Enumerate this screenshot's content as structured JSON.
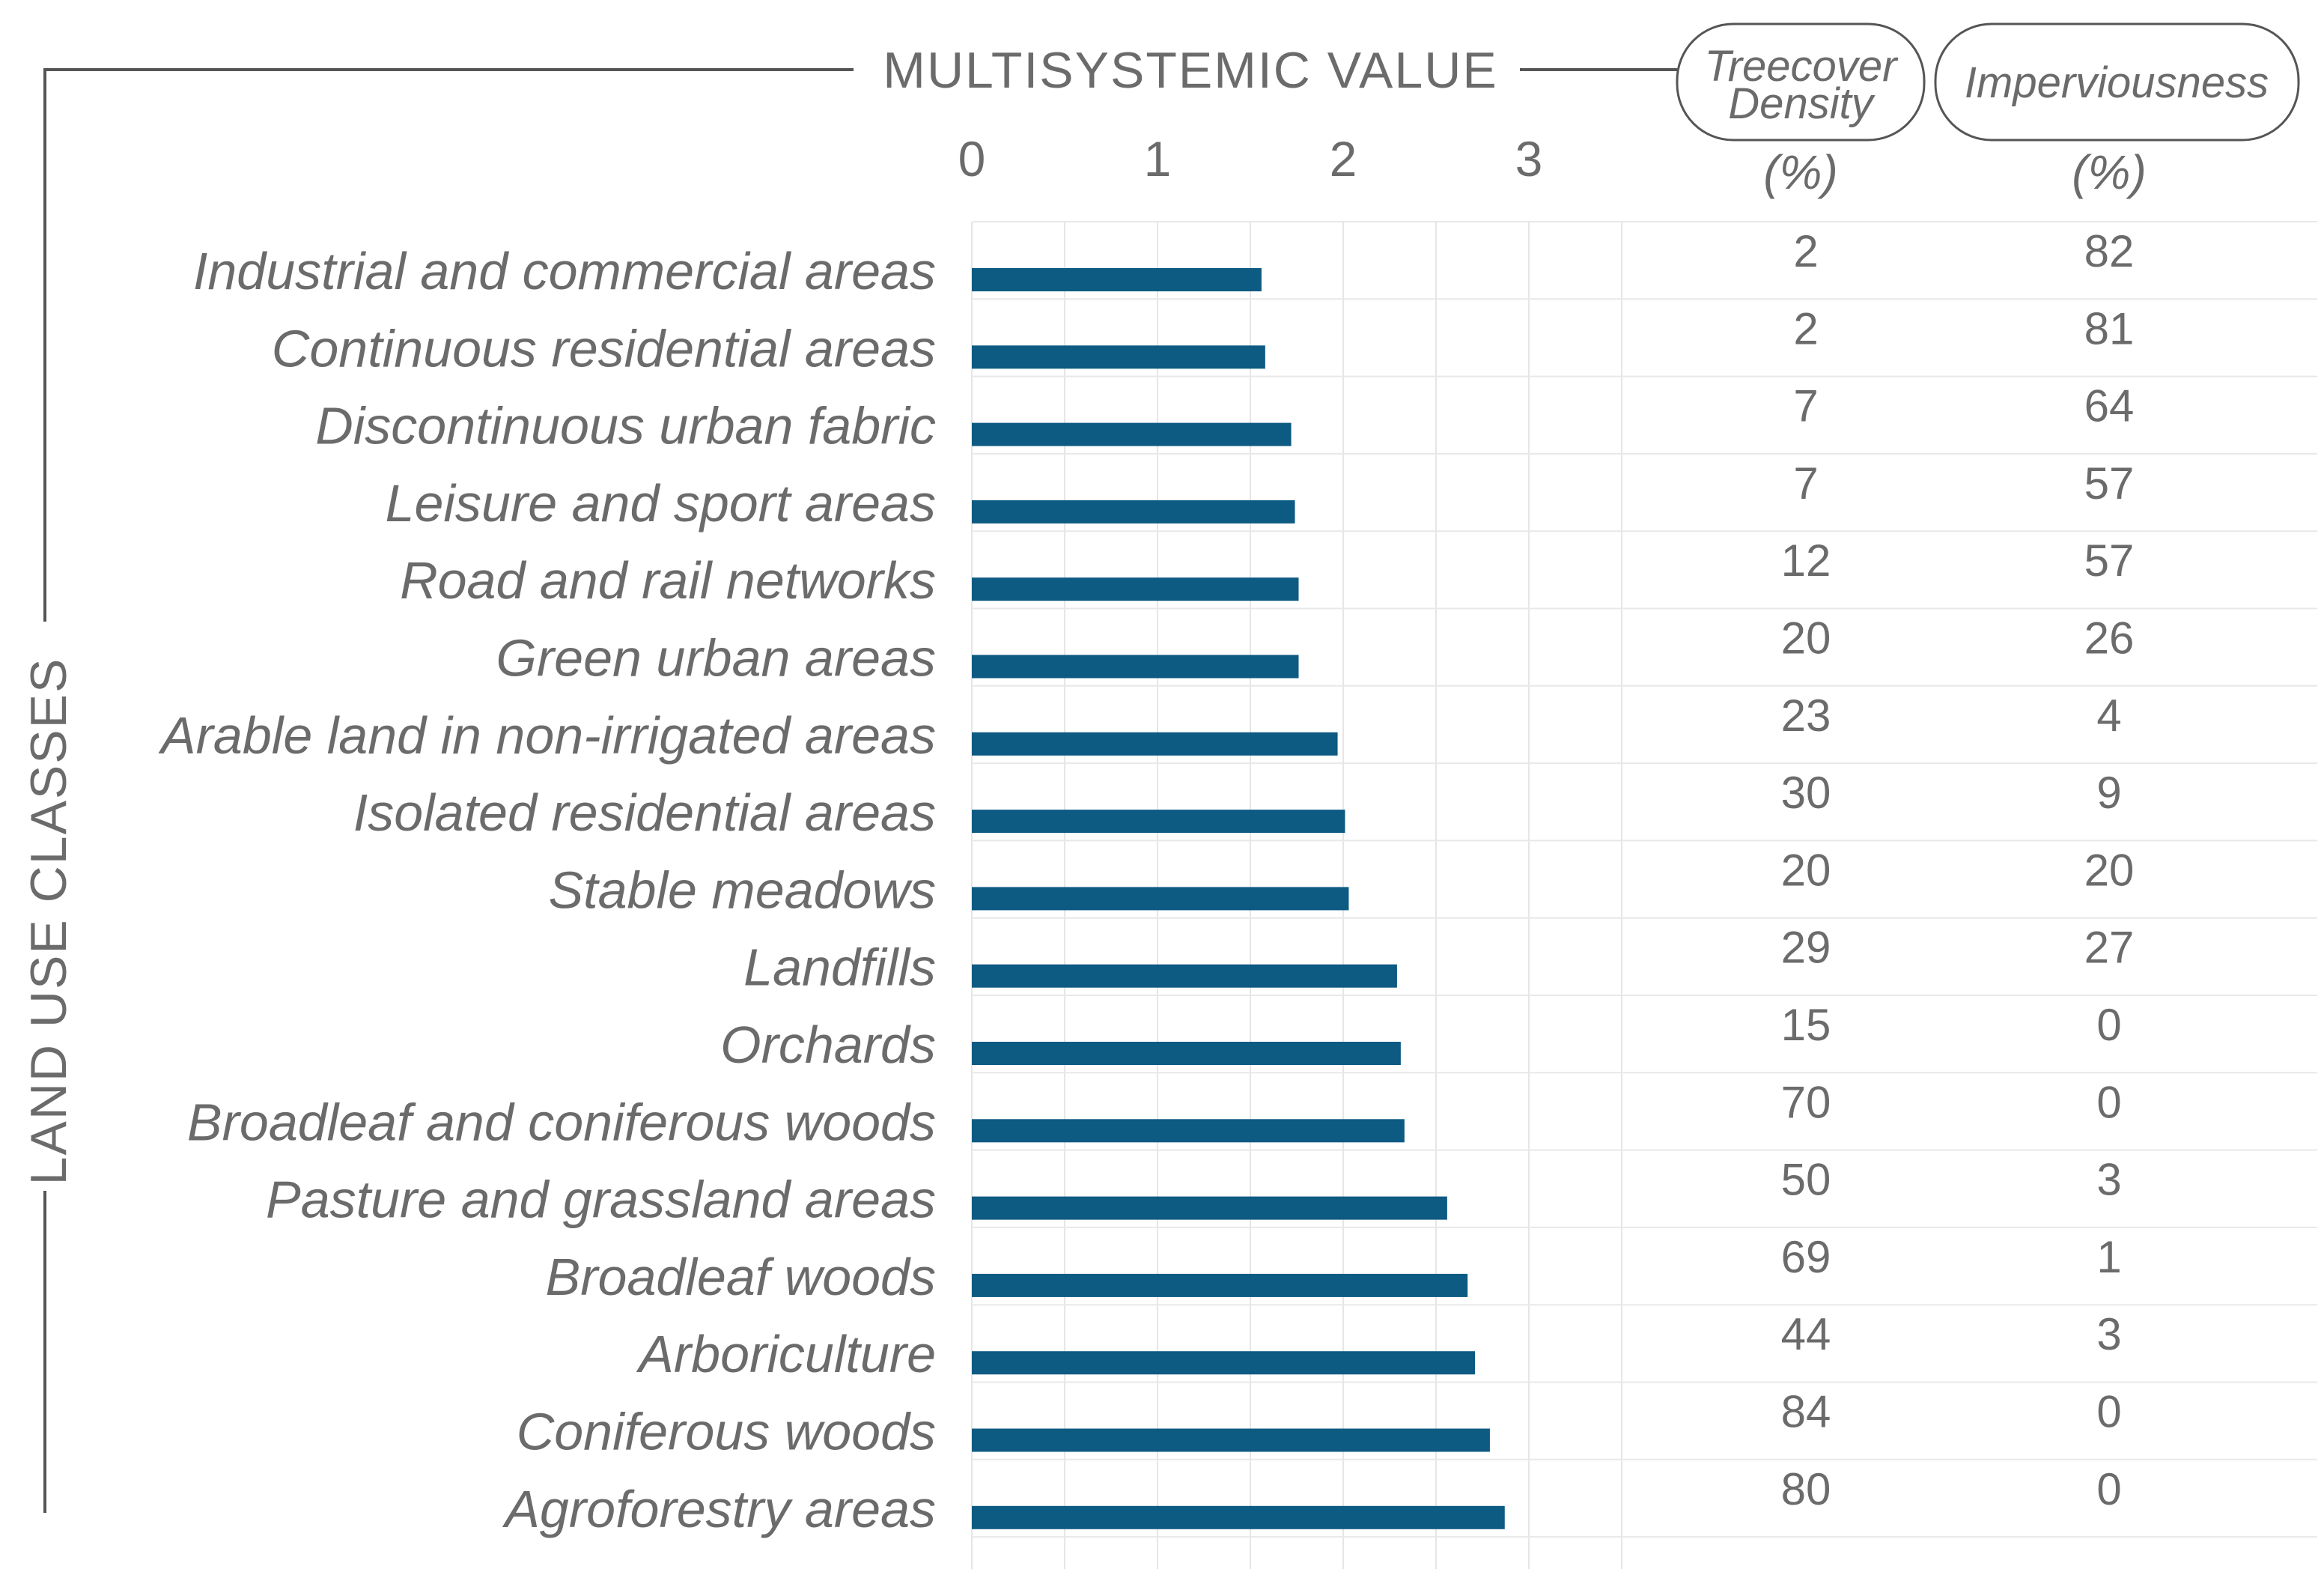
{
  "chart_data": {
    "type": "bar",
    "orientation": "horizontal",
    "title": "MULTISYSTEMIC VALUE",
    "ylabel": "LAND USE CLASSES",
    "xlim": [
      0,
      3.5
    ],
    "xticks": [
      0,
      1,
      2,
      3
    ],
    "xtick_labels": [
      "0",
      "1",
      "2",
      "3"
    ],
    "grid": true,
    "bar_color": "#0d5a82",
    "categories": [
      "Industrial and commercial areas",
      "Continuous residential areas",
      "Discontinuous urban fabric",
      "Leisure and sport areas",
      "Road and rail networks",
      "Green urban areas",
      "Arable land in non-irrigated areas",
      "Isolated residential areas",
      "Stable meadows",
      "Landfills",
      "Orchards",
      "Broadleaf and coniferous woods",
      "Pasture and grassland areas",
      "Broadleaf woods",
      "Arboriculture",
      "Coniferous woods",
      "Agroforestry areas"
    ],
    "values": [
      1.56,
      1.58,
      1.72,
      1.74,
      1.76,
      1.76,
      1.97,
      2.01,
      2.03,
      2.29,
      2.31,
      2.33,
      2.56,
      2.67,
      2.71,
      2.79,
      2.87
    ],
    "table_columns": [
      {
        "header": [
          "Treecover",
          "Density"
        ],
        "unit": "(%)",
        "values": [
          "2",
          "2",
          "7",
          "7",
          "12",
          "20",
          "23",
          "30",
          "20",
          "29",
          "15",
          "70",
          "50",
          "69",
          "44",
          "84",
          "80"
        ]
      },
      {
        "header": [
          "Imperviousness"
        ],
        "unit": "(%)",
        "values": [
          "82",
          "81",
          "64",
          "57",
          "57",
          "26",
          "4",
          "9",
          "20",
          "27",
          "0",
          "0",
          "3",
          "1",
          "3",
          "0",
          "0"
        ]
      }
    ]
  }
}
